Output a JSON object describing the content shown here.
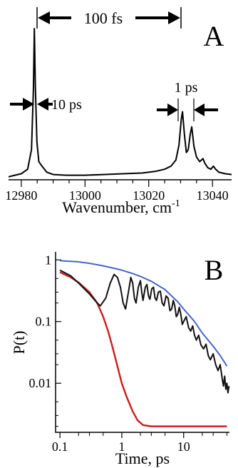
{
  "chart_data": [
    {
      "panel_label": "A",
      "type": "line",
      "xlabel": "Wavenumber, cm",
      "xlabel_sup": "-1",
      "xlim": [
        12976,
        13046
      ],
      "ylim": [
        0,
        1
      ],
      "x_ticks": [
        12980,
        13000,
        13020,
        13040
      ],
      "grid": false,
      "annotations": {
        "top": "100 fs",
        "left_peak": "10 ps",
        "right_group": "1 ps"
      },
      "series": [
        {
          "color": "#000000",
          "points": [
            [
              12976,
              0.02
            ],
            [
              12978,
              0.03
            ],
            [
              12980,
              0.04
            ],
            [
              12982,
              0.07
            ],
            [
              12983.2,
              0.2
            ],
            [
              12983.8,
              0.6
            ],
            [
              12984.1,
              1.0
            ],
            [
              12984.4,
              0.62
            ],
            [
              12984.9,
              0.25
            ],
            [
              12985.5,
              0.12
            ],
            [
              12986.5,
              0.09
            ],
            [
              12988,
              0.05
            ],
            [
              12990,
              0.035
            ],
            [
              12994,
              0.03
            ],
            [
              13000,
              0.03
            ],
            [
              13006,
              0.035
            ],
            [
              13012,
              0.04
            ],
            [
              13018,
              0.045
            ],
            [
              13022,
              0.055
            ],
            [
              13025,
              0.07
            ],
            [
              13027,
              0.09
            ],
            [
              13028.5,
              0.13
            ],
            [
              13029.5,
              0.23
            ],
            [
              13030.2,
              0.4
            ],
            [
              13030.6,
              0.45
            ],
            [
              13031.2,
              0.3
            ],
            [
              13031.8,
              0.18
            ],
            [
              13032.4,
              0.2
            ],
            [
              13033,
              0.3
            ],
            [
              13033.5,
              0.35
            ],
            [
              13034.2,
              0.22
            ],
            [
              13035,
              0.15
            ],
            [
              13036,
              0.12
            ],
            [
              13037,
              0.14
            ],
            [
              13037.6,
              0.11
            ],
            [
              13038.5,
              0.08
            ],
            [
              13039.5,
              0.07
            ],
            [
              13040.3,
              0.09
            ],
            [
              13041,
              0.07
            ],
            [
              13042,
              0.05
            ],
            [
              13044,
              0.04
            ],
            [
              13046,
              0.035
            ]
          ]
        }
      ]
    },
    {
      "panel_label": "B",
      "type": "line",
      "ylabel": "P(t)",
      "xlabel": "Time, ps",
      "x_scale": "log",
      "y_scale": "log",
      "xlim": [
        0.085,
        55
      ],
      "ylim": [
        0.0016,
        1.35
      ],
      "x_ticks": [
        {
          "value": 0.1,
          "label": "0.1"
        },
        {
          "value": 1,
          "label": "1"
        },
        {
          "value": 10,
          "label": "10"
        }
      ],
      "y_ticks": [
        {
          "value": 1,
          "label": "1"
        },
        {
          "value": 0.1,
          "label": "0.1"
        },
        {
          "value": 0.01,
          "label": "0.01"
        }
      ],
      "grid": false,
      "series": [
        {
          "color": "#4466cc",
          "points": [
            [
              0.1,
              0.97
            ],
            [
              0.2,
              0.93
            ],
            [
              0.3,
              0.88
            ],
            [
              0.5,
              0.8
            ],
            [
              0.8,
              0.72
            ],
            [
              1,
              0.68
            ],
            [
              1.5,
              0.6
            ],
            [
              2,
              0.54
            ],
            [
              3,
              0.45
            ],
            [
              5,
              0.33
            ],
            [
              8,
              0.21
            ],
            [
              10,
              0.16
            ],
            [
              15,
              0.1
            ],
            [
              20,
              0.065
            ],
            [
              30,
              0.04
            ],
            [
              40,
              0.027
            ],
            [
              50,
              0.019
            ]
          ]
        },
        {
          "color": "#cc2222",
          "points": [
            [
              0.1,
              0.63
            ],
            [
              0.15,
              0.52
            ],
            [
              0.2,
              0.43
            ],
            [
              0.3,
              0.3
            ],
            [
              0.4,
              0.2
            ],
            [
              0.5,
              0.12
            ],
            [
              0.6,
              0.07
            ],
            [
              0.7,
              0.04
            ],
            [
              0.8,
              0.024
            ],
            [
              0.9,
              0.015
            ],
            [
              1,
              0.01
            ],
            [
              1.2,
              0.006
            ],
            [
              1.5,
              0.0035
            ],
            [
              1.8,
              0.0025
            ],
            [
              2.2,
              0.0021
            ],
            [
              3,
              0.002
            ],
            [
              5,
              0.002
            ],
            [
              10,
              0.002
            ],
            [
              20,
              0.002
            ],
            [
              50,
              0.002
            ]
          ]
        },
        {
          "color": "#111111",
          "points": [
            [
              0.1,
              0.68
            ],
            [
              0.15,
              0.55
            ],
            [
              0.2,
              0.42
            ],
            [
              0.3,
              0.28
            ],
            [
              0.4,
              0.2
            ],
            [
              0.45,
              0.18
            ],
            [
              0.55,
              0.24
            ],
            [
              0.65,
              0.42
            ],
            [
              0.75,
              0.58
            ],
            [
              0.85,
              0.52
            ],
            [
              0.95,
              0.36
            ],
            [
              1.05,
              0.2
            ],
            [
              1.15,
              0.16
            ],
            [
              1.28,
              0.3
            ],
            [
              1.4,
              0.52
            ],
            [
              1.5,
              0.42
            ],
            [
              1.6,
              0.24
            ],
            [
              1.7,
              0.2
            ],
            [
              1.85,
              0.36
            ],
            [
              2,
              0.46
            ],
            [
              2.1,
              0.3
            ],
            [
              2.2,
              0.22
            ],
            [
              2.4,
              0.36
            ],
            [
              2.55,
              0.4
            ],
            [
              2.7,
              0.26
            ],
            [
              2.85,
              0.23
            ],
            [
              3.05,
              0.34
            ],
            [
              3.25,
              0.36
            ],
            [
              3.45,
              0.24
            ],
            [
              3.65,
              0.22
            ],
            [
              3.9,
              0.3
            ],
            [
              4.2,
              0.31
            ],
            [
              4.5,
              0.2
            ],
            [
              4.8,
              0.18
            ],
            [
              5.2,
              0.26
            ],
            [
              5.6,
              0.24
            ],
            [
              6,
              0.15
            ],
            [
              6.4,
              0.16
            ],
            [
              6.8,
              0.22
            ],
            [
              7.2,
              0.18
            ],
            [
              7.6,
              0.12
            ],
            [
              8,
              0.13
            ],
            [
              8.5,
              0.17
            ],
            [
              9,
              0.13
            ],
            [
              9.5,
              0.09
            ],
            [
              10,
              0.1
            ],
            [
              11,
              0.12
            ],
            [
              12,
              0.08
            ],
            [
              13,
              0.07
            ],
            [
              14,
              0.085
            ],
            [
              15,
              0.06
            ],
            [
              16,
              0.05
            ],
            [
              17.5,
              0.06
            ],
            [
              19,
              0.042
            ],
            [
              21,
              0.036
            ],
            [
              23,
              0.043
            ],
            [
              25,
              0.028
            ],
            [
              27,
              0.024
            ],
            [
              30,
              0.03
            ],
            [
              33,
              0.02
            ],
            [
              36,
              0.016
            ],
            [
              39,
              0.02
            ],
            [
              42,
              0.012
            ],
            [
              44,
              0.009
            ],
            [
              46,
              0.013
            ],
            [
              48,
              0.008
            ],
            [
              50,
              0.01
            ],
            [
              52,
              0.007
            ],
            [
              54,
              0.009
            ]
          ]
        }
      ]
    }
  ]
}
